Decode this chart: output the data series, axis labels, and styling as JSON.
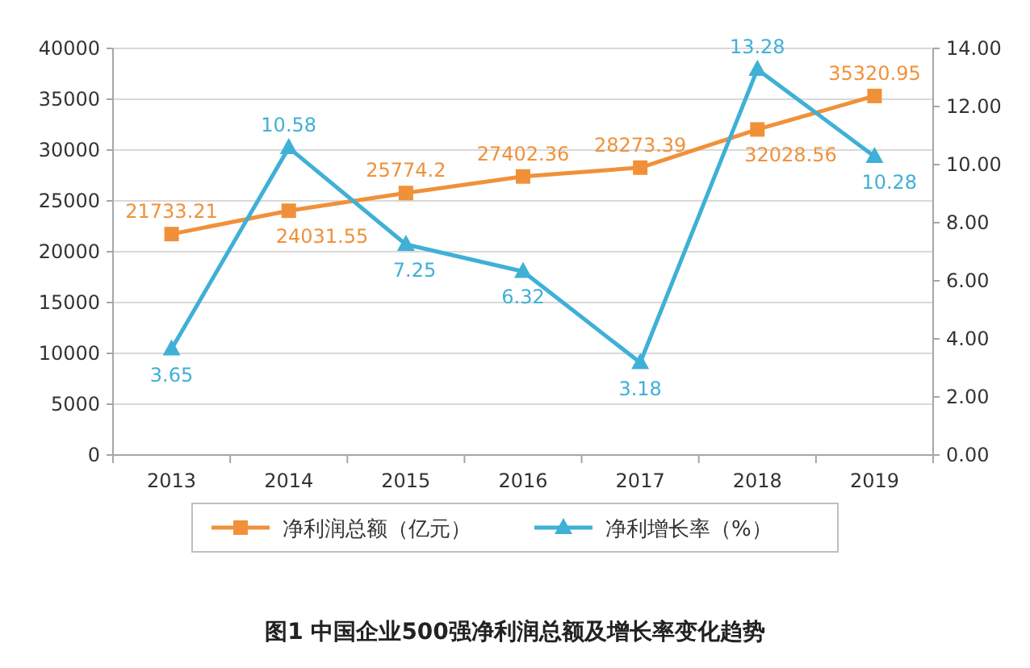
{
  "chart_data": {
    "type": "line",
    "title": "图1 中国企业500强净利润总额及增长率变化趋势",
    "categories": [
      "2013",
      "2014",
      "2015",
      "2016",
      "2017",
      "2018",
      "2019"
    ],
    "series": [
      {
        "name": "净利润总额（亿元）",
        "color": "#f0913a",
        "marker": "square",
        "values": [
          21733.21,
          24031.55,
          25774.2,
          27402.36,
          28273.39,
          32028.56,
          35320.95
        ]
      },
      {
        "name": "净利增长率（%）",
        "color": "#3fb0d6",
        "marker": "triangle",
        "axis": "y2",
        "values": [
          3.65,
          10.58,
          7.25,
          6.32,
          3.18,
          13.28,
          10.28
        ]
      }
    ],
    "ylim": [
      0,
      40000
    ],
    "yticks": [
      0,
      5000,
      10000,
      15000,
      20000,
      25000,
      30000,
      35000,
      40000
    ],
    "y2lim": [
      0,
      14
    ],
    "y2ticks": [
      {
        "value": 0,
        "label": "0.00"
      },
      {
        "value": 2,
        "label": "2.00"
      },
      {
        "value": 4,
        "label": "4.00"
      },
      {
        "value": 6,
        "label": "6.00"
      },
      {
        "value": 8,
        "label": "8.00"
      },
      {
        "value": 10,
        "label": "10.00"
      },
      {
        "value": 12,
        "label": "12.00"
      },
      {
        "value": 14,
        "label": "14.00"
      }
    ],
    "grid": "y",
    "legend": "bottom",
    "data_labels": true
  }
}
